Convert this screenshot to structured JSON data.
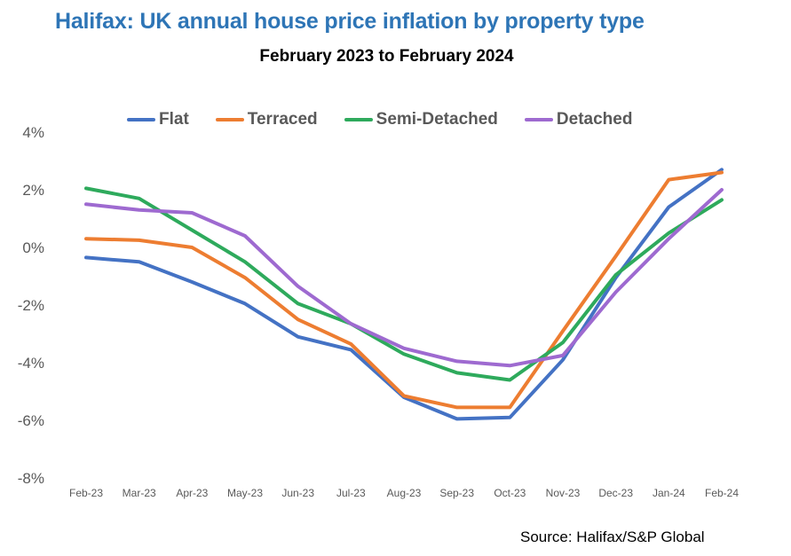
{
  "title": "Halifax: UK annual house price inflation by property type",
  "subtitle": "February 2023 to February 2024",
  "source": "Source: Halifax/S&P Global",
  "chart_data": {
    "type": "line",
    "title": "Halifax: UK annual house price inflation by property type",
    "subtitle": "February 2023 to February 2024",
    "xlabel": "",
    "ylabel": "",
    "categories": [
      "Feb-23",
      "Mar-23",
      "Apr-23",
      "May-23",
      "Jun-23",
      "Jul-23",
      "Aug-23",
      "Sep-23",
      "Oct-23",
      "Nov-23",
      "Dec-23",
      "Jan-24",
      "Feb-24"
    ],
    "ylim": [
      -8,
      4
    ],
    "yticks": [
      4,
      2,
      0,
      -2,
      -4,
      -6,
      -8
    ],
    "ytick_labels": [
      "4%",
      "2%",
      "0%",
      "-2%",
      "-4%",
      "-6%",
      "-8%"
    ],
    "grid": false,
    "legend_position": "top",
    "series": [
      {
        "name": "Flat",
        "color": "#4472C4",
        "values": [
          -0.35,
          -0.5,
          -1.2,
          -1.95,
          -3.1,
          -3.55,
          -5.2,
          -5.95,
          -5.9,
          -3.9,
          -1.05,
          1.4,
          2.7
        ]
      },
      {
        "name": "Terraced",
        "color": "#ED7D31",
        "values": [
          0.3,
          0.25,
          0.0,
          -1.05,
          -2.5,
          -3.35,
          -5.15,
          -5.55,
          -5.55,
          -2.9,
          -0.3,
          2.35,
          2.6
        ]
      },
      {
        "name": "Semi-Detached",
        "color": "#2EAA5C",
        "values": [
          2.05,
          1.7,
          0.6,
          -0.5,
          -1.95,
          -2.65,
          -3.7,
          -4.35,
          -4.6,
          -3.3,
          -0.95,
          0.5,
          1.65
        ]
      },
      {
        "name": "Detached",
        "color": "#9E6AD0",
        "values": [
          1.5,
          1.3,
          1.2,
          0.4,
          -1.35,
          -2.65,
          -3.5,
          -3.95,
          -4.1,
          -3.75,
          -1.55,
          0.3,
          2.0
        ]
      }
    ],
    "source": "Source: Halifax/S&P Global"
  }
}
